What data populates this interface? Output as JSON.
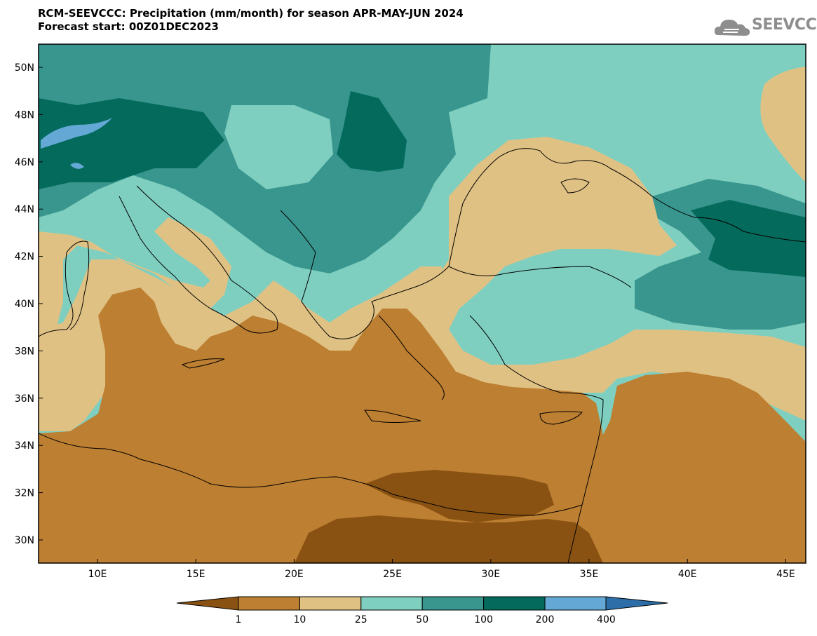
{
  "title": {
    "line1": "RCM-SEEVCCC: Precipitation (mm/month) for season APR-MAY-JUN 2024",
    "line2": "Forecast start: 00Z01DEC2023"
  },
  "logo": {
    "text": "SEEVCCC",
    "icon": "cloud-logo-icon"
  },
  "map": {
    "lat_labels": [
      "50N",
      "48N",
      "46N",
      "44N",
      "42N",
      "40N",
      "38N",
      "36N",
      "34N",
      "32N",
      "30N"
    ],
    "lon_labels": [
      "10E",
      "15E",
      "20E",
      "25E",
      "30E",
      "35E",
      "40E",
      "45E"
    ]
  },
  "legend": {
    "labels": [
      "1",
      "10",
      "25",
      "50",
      "100",
      "200",
      "400"
    ],
    "colors": [
      "#8a5212",
      "#bd7f31",
      "#e0c184",
      "#7fcfc0",
      "#38968e",
      "#036a5c",
      "#64a9d5",
      "#2d6ea8"
    ]
  }
}
